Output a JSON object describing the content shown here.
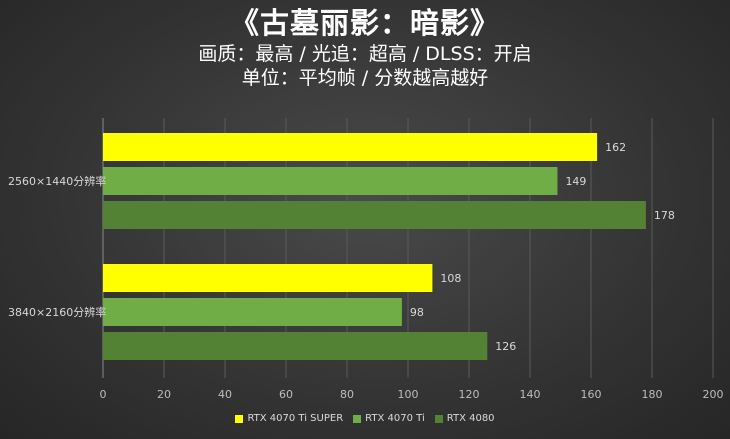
{
  "titles": {
    "line1": "《古墓丽影：暗影》",
    "line2": "画质：最高 / 光追：超高 / DLSS：开启",
    "line3": "单位：平均帧 / 分数越高越好"
  },
  "chart_data": {
    "type": "bar",
    "orientation": "horizontal",
    "categories": [
      "2560×1440分辨率",
      "3840×2160分辨率"
    ],
    "series": [
      {
        "name": "RTX 4070 Ti SUPER",
        "color": "#ffff00",
        "values": [
          162,
          108
        ]
      },
      {
        "name": "RTX 4070 Ti",
        "color": "#70ad47",
        "values": [
          149,
          98
        ]
      },
      {
        "name": "RTX 4080",
        "color": "#548235",
        "values": [
          178,
          126
        ]
      }
    ],
    "xlim": [
      0,
      200
    ],
    "xticks": [
      0,
      20,
      40,
      60,
      80,
      100,
      120,
      140,
      160,
      180,
      200
    ],
    "grid": "vertical",
    "legend": "bottom"
  }
}
